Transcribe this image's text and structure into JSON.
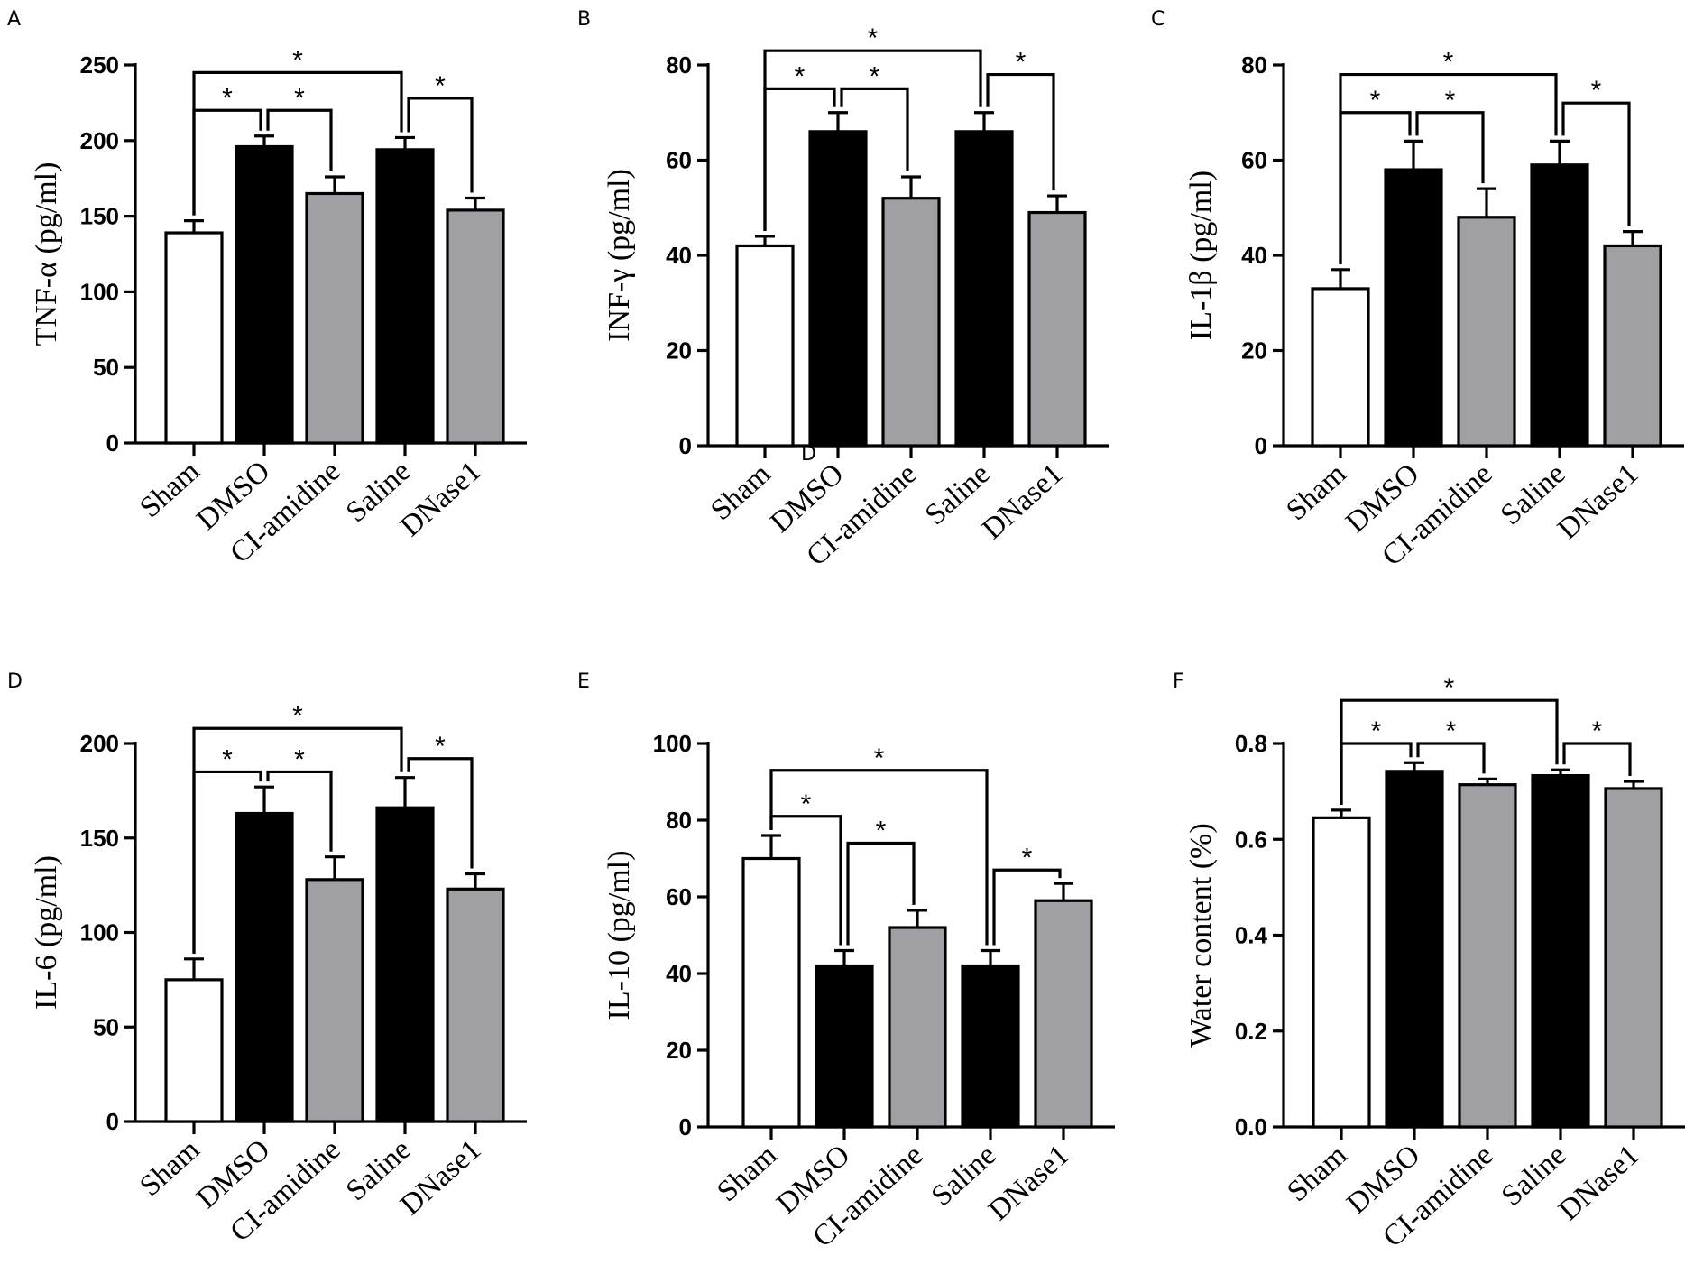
{
  "colors": {
    "sham": "#ffffff",
    "dmso": "#000000",
    "cl_amidine": "#a0a0a4",
    "saline": "#000000",
    "dnase1": "#a0a0a4",
    "stroke": "#000000"
  },
  "stray_label": "D",
  "chart_data": [
    {
      "type": "bar",
      "panel": "A",
      "categories": [
        "Sham",
        "DMSO",
        "CI-amidine",
        "Saline",
        "DNase1"
      ],
      "values": [
        139,
        196,
        165,
        194,
        154
      ],
      "errors": [
        8,
        7,
        11,
        8,
        8
      ],
      "ylabel": "TNF-α (pg/ml)",
      "ylim": [
        0,
        250
      ],
      "yticks": [
        0,
        50,
        100,
        150,
        200,
        250
      ],
      "significance": [
        {
          "from": 0,
          "to": 1,
          "label": "*",
          "y": 220
        },
        {
          "from": 1,
          "to": 2,
          "label": "*",
          "y": 220
        },
        {
          "from": 0,
          "to": 3,
          "label": "*",
          "y": 245
        },
        {
          "from": 3,
          "to": 4,
          "label": "*",
          "y": 228
        }
      ]
    },
    {
      "type": "bar",
      "panel": "B",
      "categories": [
        "Sham",
        "DMSO",
        "CI-amidine",
        "Saline",
        "DNase1"
      ],
      "values": [
        42,
        66,
        52,
        66,
        49
      ],
      "errors": [
        2,
        4,
        4.5,
        4,
        3.5
      ],
      "ylabel": "INF-γ (pg/ml)",
      "ylim": [
        0,
        80
      ],
      "yticks": [
        0,
        20,
        40,
        60,
        80
      ],
      "significance": [
        {
          "from": 0,
          "to": 1,
          "label": "*",
          "y": 75
        },
        {
          "from": 1,
          "to": 2,
          "label": "*",
          "y": 75
        },
        {
          "from": 0,
          "to": 3,
          "label": "*",
          "y": 83
        },
        {
          "from": 3,
          "to": 4,
          "label": "*",
          "y": 78
        }
      ]
    },
    {
      "type": "bar",
      "panel": "C",
      "categories": [
        "Sham",
        "DMSO",
        "CI-amidine",
        "Saline",
        "DNase1"
      ],
      "values": [
        33,
        58,
        48,
        59,
        42
      ],
      "errors": [
        4,
        6,
        6,
        5,
        3
      ],
      "ylabel": "IL-1β (pg/ml)",
      "ylim": [
        0,
        80
      ],
      "yticks": [
        0,
        20,
        40,
        60,
        80
      ],
      "significance": [
        {
          "from": 0,
          "to": 1,
          "label": "*",
          "y": 70
        },
        {
          "from": 1,
          "to": 2,
          "label": "*",
          "y": 70
        },
        {
          "from": 0,
          "to": 3,
          "label": "*",
          "y": 78
        },
        {
          "from": 3,
          "to": 4,
          "label": "*",
          "y": 72
        }
      ]
    },
    {
      "type": "bar",
      "panel": "D",
      "categories": [
        "Sham",
        "DMSO",
        "CI-amidine",
        "Saline",
        "DNase1"
      ],
      "values": [
        75,
        163,
        128,
        166,
        123
      ],
      "errors": [
        11,
        14,
        12,
        16,
        8
      ],
      "ylabel": "IL-6 (pg/ml)",
      "ylim": [
        0,
        200
      ],
      "yticks": [
        0,
        50,
        100,
        150,
        200
      ],
      "significance": [
        {
          "from": 0,
          "to": 1,
          "label": "*",
          "y": 185
        },
        {
          "from": 1,
          "to": 2,
          "label": "*",
          "y": 185
        },
        {
          "from": 0,
          "to": 3,
          "label": "*",
          "y": 208
        },
        {
          "from": 3,
          "to": 4,
          "label": "*",
          "y": 192
        }
      ]
    },
    {
      "type": "bar",
      "panel": "E",
      "categories": [
        "Sham",
        "DMSO",
        "CI-amidine",
        "Saline",
        "DNase1"
      ],
      "values": [
        70,
        42,
        52,
        42,
        59
      ],
      "errors": [
        6,
        4,
        4.5,
        4,
        4.5
      ],
      "ylabel": "IL-10 (pg/ml)",
      "ylim": [
        0,
        100
      ],
      "yticks": [
        0,
        20,
        40,
        60,
        80,
        100
      ],
      "significance": [
        {
          "from": 0,
          "to": 1,
          "label": "*",
          "y": 81
        },
        {
          "from": 1,
          "to": 2,
          "label": "*",
          "y": 74
        },
        {
          "from": 0,
          "to": 3,
          "label": "*",
          "y": 93
        },
        {
          "from": 3,
          "to": 4,
          "label": "*",
          "y": 67
        }
      ]
    },
    {
      "type": "bar",
      "panel": "F",
      "categories": [
        "Sham",
        "DMSO",
        "CI-amidine",
        "Saline",
        "DNase1"
      ],
      "values": [
        0.645,
        0.742,
        0.714,
        0.733,
        0.706
      ],
      "errors": [
        0.016,
        0.018,
        0.012,
        0.012,
        0.015
      ],
      "ylabel": "Water content (%)",
      "ylim": [
        0,
        0.8
      ],
      "yticks": [
        "0.0",
        "0.2",
        "0.4",
        "0.6",
        "0.8"
      ],
      "significance": [
        {
          "from": 0,
          "to": 1,
          "label": "*",
          "y": 0.8
        },
        {
          "from": 1,
          "to": 2,
          "label": "*",
          "y": 0.8
        },
        {
          "from": 0,
          "to": 3,
          "label": "*",
          "y": 0.89
        },
        {
          "from": 3,
          "to": 4,
          "label": "*",
          "y": 0.8
        }
      ]
    }
  ]
}
